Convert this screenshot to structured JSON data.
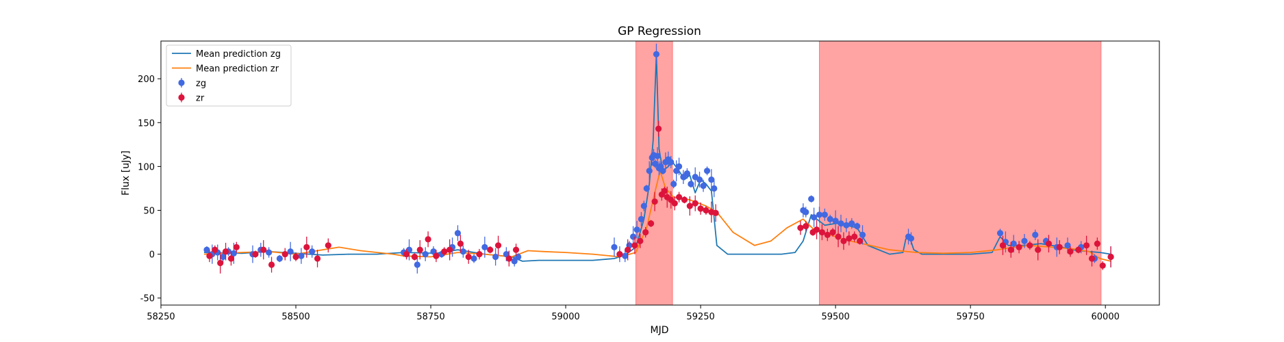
{
  "chart_data": {
    "type": "scatter",
    "title": "GP Regression",
    "xlabel": "MJD",
    "ylabel": "Flux [uJy]",
    "xlim": [
      58250,
      60100
    ],
    "ylim": [
      -58,
      243
    ],
    "xticks": [
      58250,
      58500,
      58750,
      59000,
      59250,
      59500,
      59750,
      60000
    ],
    "yticks": [
      -50,
      0,
      50,
      100,
      150,
      200
    ],
    "legend_position": "upper-left",
    "colors": {
      "mean_zg": "#1f77b4",
      "mean_zr": "#ff7f0e",
      "zg": "#4169e1",
      "zr": "#dc143c",
      "shade": "#ff6666"
    },
    "shaded_regions": [
      [
        59130,
        59198
      ],
      [
        59470,
        59992
      ]
    ],
    "lines": [
      {
        "name": "Mean prediction zg",
        "x": [
          58330,
          58400,
          58450,
          58500,
          58550,
          58600,
          58650,
          58700,
          58760,
          58800,
          58850,
          58900,
          58920,
          58950,
          59000,
          59050,
          59090,
          59110,
          59130,
          59145,
          59155,
          59162,
          59168,
          59173,
          59180,
          59190,
          59198,
          59210,
          59220,
          59230,
          59240,
          59250,
          59260,
          59270,
          59280,
          59300,
          59350,
          59400,
          59425,
          59440,
          59455,
          59465,
          59480,
          59500,
          59510,
          59520,
          59540,
          59560,
          59600,
          59625,
          59630,
          59637,
          59645,
          59660,
          59700,
          59750,
          59790,
          59805,
          59820,
          59850,
          59880,
          59900,
          59920,
          59940,
          59970,
          59990,
          60010
        ],
        "y": [
          2,
          1,
          3,
          1,
          -1,
          0,
          0,
          2,
          1,
          5,
          0,
          -3,
          -8,
          -7,
          -7,
          -7,
          -5,
          -1,
          8,
          40,
          80,
          130,
          228,
          120,
          95,
          100,
          105,
          95,
          85,
          90,
          70,
          85,
          80,
          72,
          10,
          0,
          0,
          0,
          2,
          15,
          45,
          40,
          33,
          35,
          35,
          33,
          30,
          10,
          0,
          2,
          17,
          20,
          5,
          0,
          0,
          0,
          2,
          20,
          10,
          10,
          12,
          10,
          8,
          5,
          3,
          2,
          0
        ]
      },
      {
        "name": "Mean prediction zr",
        "x": [
          58330,
          58400,
          58450,
          58500,
          58550,
          58580,
          58620,
          58680,
          58700,
          58750,
          58800,
          58850,
          58900,
          58930,
          58960,
          59000,
          59050,
          59100,
          59130,
          59150,
          59165,
          59175,
          59185,
          59200,
          59230,
          59260,
          59280,
          59310,
          59350,
          59380,
          59410,
          59440,
          59460,
          59490,
          59520,
          59550,
          59600,
          59650,
          59700,
          59750,
          59800,
          59830,
          59860,
          59900,
          59940,
          59970,
          59990,
          60010
        ],
        "y": [
          0,
          2,
          3,
          0,
          5,
          8,
          4,
          0,
          -2,
          -3,
          2,
          0,
          -3,
          4,
          3,
          2,
          0,
          -3,
          2,
          30,
          70,
          95,
          75,
          65,
          62,
          55,
          48,
          25,
          10,
          15,
          30,
          40,
          28,
          22,
          16,
          12,
          5,
          2,
          1,
          2,
          5,
          8,
          10,
          8,
          6,
          3,
          -5,
          -8
        ]
      }
    ],
    "series": [
      {
        "name": "zg",
        "x": [
          58335,
          58345,
          58355,
          58365,
          58375,
          58385,
          58420,
          58435,
          58450,
          58470,
          58490,
          58510,
          58530,
          58700,
          58710,
          58725,
          58740,
          58755,
          58770,
          58790,
          58800,
          58810,
          58830,
          58850,
          58870,
          58890,
          58905,
          58912,
          59090,
          59100,
          59110,
          59118,
          59125,
          59132,
          59140,
          59145,
          59150,
          59155,
          59160,
          59163,
          59166,
          59168,
          59170,
          59173,
          59176,
          59180,
          59185,
          59190,
          59195,
          59200,
          59205,
          59210,
          59218,
          59225,
          59232,
          59240,
          59248,
          59255,
          59262,
          59270,
          59275,
          59440,
          59445,
          59455,
          59460,
          59470,
          59480,
          59490,
          59500,
          59510,
          59520,
          59530,
          59540,
          59550,
          59635,
          59640,
          59805,
          59815,
          59830,
          59850,
          59870,
          59890,
          59910,
          59930,
          59955,
          59980,
          60010
        ],
        "y": [
          5,
          0,
          2,
          -3,
          3,
          1,
          0,
          5,
          2,
          -5,
          3,
          -2,
          3,
          2,
          5,
          -12,
          0,
          3,
          0,
          8,
          24,
          3,
          -5,
          8,
          -3,
          0,
          -8,
          -3,
          8,
          0,
          -2,
          10,
          20,
          28,
          40,
          55,
          75,
          95,
          110,
          113,
          103,
          228,
          112,
          98,
          100,
          95,
          105,
          108,
          105,
          80,
          95,
          100,
          88,
          92,
          80,
          88,
          85,
          78,
          95,
          85,
          75,
          50,
          48,
          63,
          42,
          45,
          45,
          40,
          38,
          35,
          33,
          35,
          32,
          22,
          20,
          18,
          24,
          14,
          12,
          15,
          22,
          15,
          8,
          10,
          8,
          -5,
          -3
        ]
      },
      {
        "name": "zr",
        "x": [
          58340,
          58350,
          58360,
          58370,
          58380,
          58390,
          58425,
          58440,
          58455,
          58480,
          58500,
          58520,
          58540,
          58560,
          58705,
          58720,
          58730,
          58745,
          58760,
          58775,
          58785,
          58805,
          58820,
          58840,
          58860,
          58875,
          58895,
          58908,
          59100,
          59115,
          59128,
          59138,
          59148,
          59158,
          59165,
          59172,
          59178,
          59183,
          59188,
          59195,
          59202,
          59210,
          59220,
          59230,
          59240,
          59250,
          59260,
          59270,
          59278,
          59435,
          59445,
          59458,
          59465,
          59475,
          59485,
          59495,
          59505,
          59515,
          59525,
          59535,
          59545,
          59810,
          59825,
          59840,
          59860,
          59875,
          59895,
          59915,
          59935,
          59950,
          59965,
          59975,
          59985,
          59995,
          60010
        ],
        "y": [
          -2,
          5,
          -10,
          3,
          -5,
          8,
          0,
          5,
          -12,
          0,
          -3,
          8,
          -5,
          10,
          0,
          -3,
          5,
          17,
          -2,
          3,
          5,
          12,
          -3,
          0,
          5,
          10,
          -5,
          5,
          0,
          5,
          10,
          15,
          25,
          35,
          60,
          143,
          68,
          72,
          65,
          62,
          58,
          65,
          62,
          55,
          58,
          52,
          50,
          48,
          47,
          30,
          32,
          25,
          28,
          25,
          22,
          25,
          20,
          15,
          18,
          20,
          15,
          10,
          5,
          8,
          10,
          5,
          12,
          8,
          3,
          5,
          10,
          -5,
          12,
          -13,
          -3
        ]
      }
    ]
  }
}
